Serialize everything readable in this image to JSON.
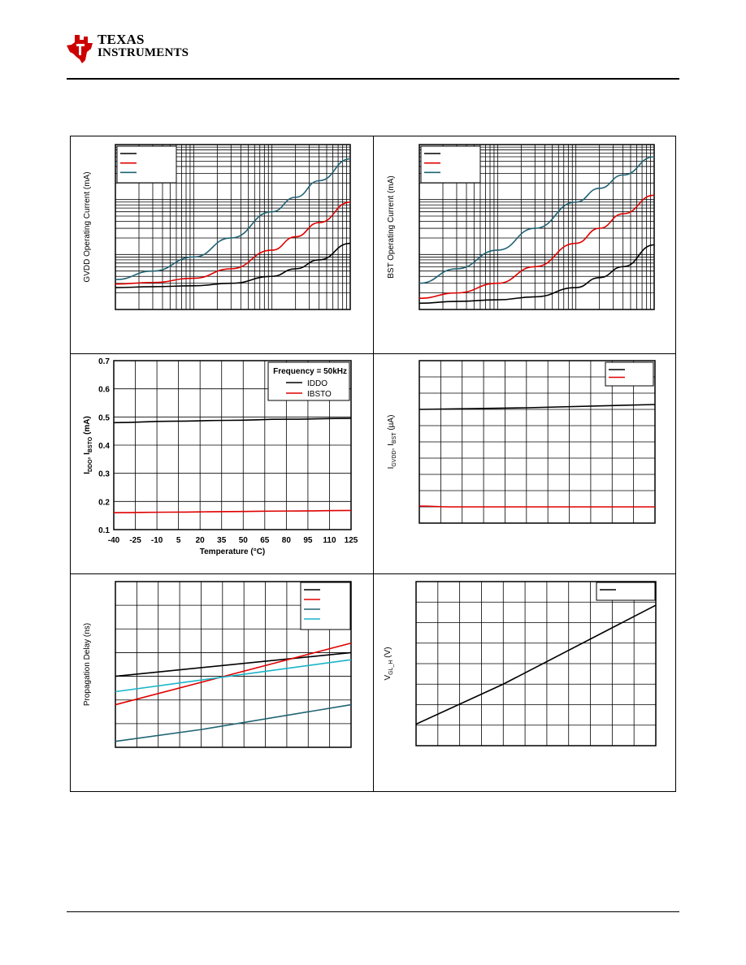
{
  "header": {
    "logo_text_line1": "TEXAS",
    "logo_text_line2": "INSTRUMENTS",
    "logo_color": "#cc0000"
  },
  "chart_data": [
    {
      "id": "gvdd-operating-current",
      "type": "line",
      "xscale": "log",
      "yscale": "log",
      "xlim": [
        1,
        1000
      ],
      "ylim": [
        0.1,
        100
      ],
      "title": "",
      "xlabel": "",
      "ylabel": "GVDD Operating Current (mA)",
      "grid": true,
      "legend_position": "top-left",
      "series": [
        {
          "color": "#000000",
          "x": [
            1,
            3,
            10,
            30,
            100,
            200,
            400,
            1000
          ],
          "y": [
            0.25,
            0.26,
            0.27,
            0.3,
            0.4,
            0.55,
            0.8,
            1.6
          ]
        },
        {
          "color": "#e00000",
          "x": [
            1,
            3,
            10,
            30,
            100,
            200,
            400,
            1000
          ],
          "y": [
            0.29,
            0.31,
            0.37,
            0.55,
            1.2,
            2.1,
            3.8,
            9
          ]
        },
        {
          "color": "#1f6273",
          "x": [
            1,
            3,
            10,
            30,
            100,
            200,
            400,
            1000
          ],
          "y": [
            0.35,
            0.5,
            0.9,
            2,
            6,
            11,
            22,
            55
          ]
        }
      ]
    },
    {
      "id": "bst-operating-current",
      "type": "line",
      "xscale": "log",
      "yscale": "log",
      "xlim": [
        1,
        1000
      ],
      "ylim": [
        0.1,
        100
      ],
      "title": "",
      "xlabel": "",
      "ylabel": "BST Operating Current (mA)",
      "grid": true,
      "legend_position": "top-left",
      "series": [
        {
          "color": "#000000",
          "x": [
            1,
            3,
            10,
            30,
            100,
            200,
            400,
            1000
          ],
          "y": [
            0.13,
            0.14,
            0.15,
            0.17,
            0.25,
            0.38,
            0.6,
            1.5
          ]
        },
        {
          "color": "#e00000",
          "x": [
            1,
            3,
            10,
            30,
            100,
            200,
            400,
            1000
          ],
          "y": [
            0.16,
            0.2,
            0.3,
            0.6,
            1.6,
            3,
            5.5,
            12
          ]
        },
        {
          "color": "#1f6273",
          "x": [
            1,
            3,
            10,
            30,
            100,
            200,
            400,
            1000
          ],
          "y": [
            0.3,
            0.55,
            1.2,
            3,
            9,
            16,
            28,
            60
          ]
        }
      ]
    },
    {
      "id": "iddo-ibsto-vs-temperature",
      "type": "line",
      "xlim": [
        -40,
        125
      ],
      "ylim": [
        0.1,
        0.7
      ],
      "title": "",
      "xlabel": "Temperature (°C)",
      "ylabel": "I",
      "ylabel_sub1": "DDO",
      "ylabel_mid": ", I",
      "ylabel_sub2": "BSTO",
      "ylabel_end": " (mA)",
      "xticks": [
        "-40",
        "-25",
        "-10",
        "5",
        "20",
        "35",
        "50",
        "65",
        "80",
        "95",
        "110",
        "125"
      ],
      "yticks": [
        "0.1",
        "0.2",
        "0.3",
        "0.4",
        "0.5",
        "0.6",
        "0.7"
      ],
      "grid": true,
      "legend_position": "top-right",
      "legend_title": "Frequency = 50kHz",
      "series": [
        {
          "name": "IDDO",
          "color": "#000000",
          "x": [
            -40,
            0,
            40,
            80,
            125
          ],
          "y": [
            0.48,
            0.485,
            0.488,
            0.492,
            0.495
          ]
        },
        {
          "name": "IBSTO",
          "color": "#e00000",
          "x": [
            -40,
            0,
            40,
            80,
            125
          ],
          "y": [
            0.16,
            0.162,
            0.164,
            0.166,
            0.168
          ]
        }
      ]
    },
    {
      "id": "gvdd-bst-quiescent",
      "type": "line",
      "xlim": [
        0,
        11
      ],
      "ylim": [
        0,
        10
      ],
      "title": "",
      "xlabel": "",
      "ylabel": "I",
      "ylabel_sub1": "GVDD",
      "ylabel_mid": ", I",
      "ylabel_sub2": "BST",
      "ylabel_end": " (µA)",
      "grid": true,
      "legend_position": "top-right",
      "series": [
        {
          "color": "#000000",
          "x": [
            0,
            5,
            11
          ],
          "y": [
            7.0,
            7.1,
            7.3
          ]
        },
        {
          "color": "#e00000",
          "x": [
            0,
            1.5,
            4,
            11
          ],
          "y": [
            1.05,
            1.0,
            1.0,
            1.0
          ]
        }
      ]
    },
    {
      "id": "propagation-delay",
      "type": "line",
      "xlim": [
        0,
        11
      ],
      "ylim": [
        0,
        7
      ],
      "title": "",
      "xlabel": "",
      "ylabel": "Propagation Delay (ns)",
      "grid": true,
      "legend_position": "top-right",
      "series": [
        {
          "color": "#000000",
          "x": [
            0,
            11
          ],
          "y": [
            3.0,
            4.0
          ]
        },
        {
          "color": "#e00000",
          "x": [
            0,
            11
          ],
          "y": [
            1.8,
            4.4
          ]
        },
        {
          "color": "#1f6273",
          "x": [
            0,
            4,
            11
          ],
          "y": [
            0.25,
            0.75,
            1.8
          ]
        },
        {
          "color": "#19b4c8",
          "x": [
            0,
            11
          ],
          "y": [
            2.35,
            3.7
          ]
        }
      ]
    },
    {
      "id": "vgl-h",
      "type": "line",
      "xlim": [
        0,
        11
      ],
      "ylim": [
        0,
        8
      ],
      "title": "",
      "xlabel": "",
      "ylabel": "V",
      "ylabel_sub1": "GL_H",
      "ylabel_end": " (V)",
      "grid": true,
      "legend_position": "top-right",
      "series": [
        {
          "color": "#000000",
          "x": [
            0,
            4,
            11
          ],
          "y": [
            1.05,
            3.0,
            6.85
          ]
        }
      ]
    }
  ]
}
